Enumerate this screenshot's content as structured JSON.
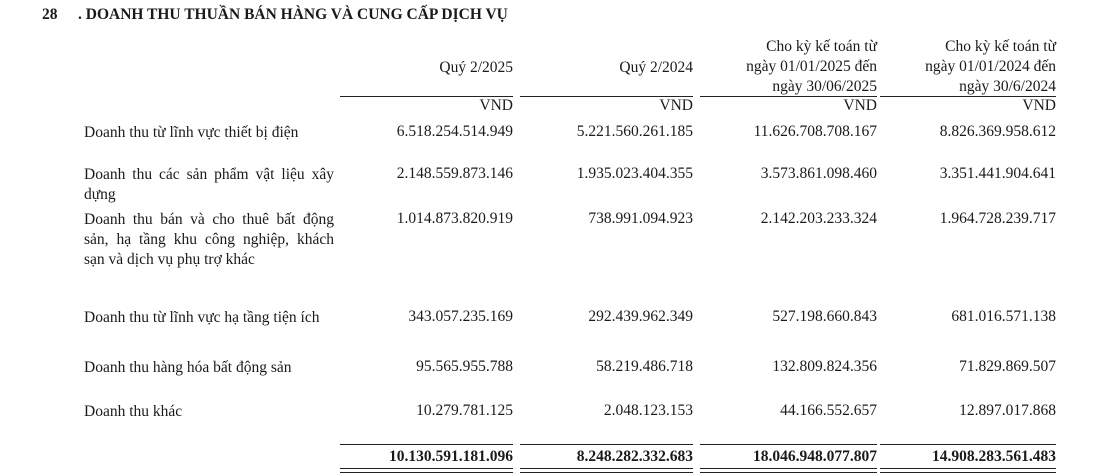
{
  "section": {
    "number": "28",
    "title": ". DOANH THU THUẦN BÁN HÀNG VÀ CUNG CẤP DỊCH VỤ"
  },
  "columns": [
    {
      "line1": "Quý 2/2025",
      "line2": "",
      "line3": ""
    },
    {
      "line1": "Quý 2/2024",
      "line2": "",
      "line3": ""
    },
    {
      "line1": "Cho kỳ kế toán từ",
      "line2": "ngày 01/01/2025 đến",
      "line3": "ngày 30/06/2025"
    },
    {
      "line1": "Cho kỳ kế toán từ",
      "line2": "ngày 01/01/2024 đến",
      "line3": "ngày 30/6/2024"
    }
  ],
  "unit": "VND",
  "rows": [
    {
      "label": "Doanh thu từ lĩnh vực thiết bị điện",
      "values": [
        "6.518.254.514.949",
        "5.221.560.261.185",
        "11.626.708.708.167",
        "8.826.369.958.612"
      ]
    },
    {
      "label": "Doanh thu các sản phẩm vật liệu xây dựng",
      "values": [
        "2.148.559.873.146",
        "1.935.023.404.355",
        "3.573.861.098.460",
        "3.351.441.904.641"
      ]
    },
    {
      "label": "Doanh thu bán và cho thuê bất động sản, hạ tầng khu công nghiệp, khách sạn và dịch vụ phụ trợ khác",
      "values": [
        "1.014.873.820.919",
        "738.991.094.923",
        "2.142.203.233.324",
        "1.964.728.239.717"
      ]
    },
    {
      "label": "Doanh thu từ lĩnh vực hạ tầng tiện ích",
      "values": [
        "343.057.235.169",
        "292.439.962.349",
        "527.198.660.843",
        "681.016.571.138"
      ]
    },
    {
      "label": "Doanh thu hàng hóa bất động sản",
      "values": [
        "95.565.955.788",
        "58.219.486.718",
        "132.809.824.356",
        "71.829.869.507"
      ]
    },
    {
      "label": "Doanh thu khác",
      "values": [
        "10.279.781.125",
        "2.048.123.153",
        "44.166.552.657",
        "12.897.017.868"
      ]
    }
  ],
  "totals": [
    "10.130.591.181.096",
    "8.248.282.332.683",
    "18.046.948.077.807",
    "14.908.283.561.483"
  ]
}
